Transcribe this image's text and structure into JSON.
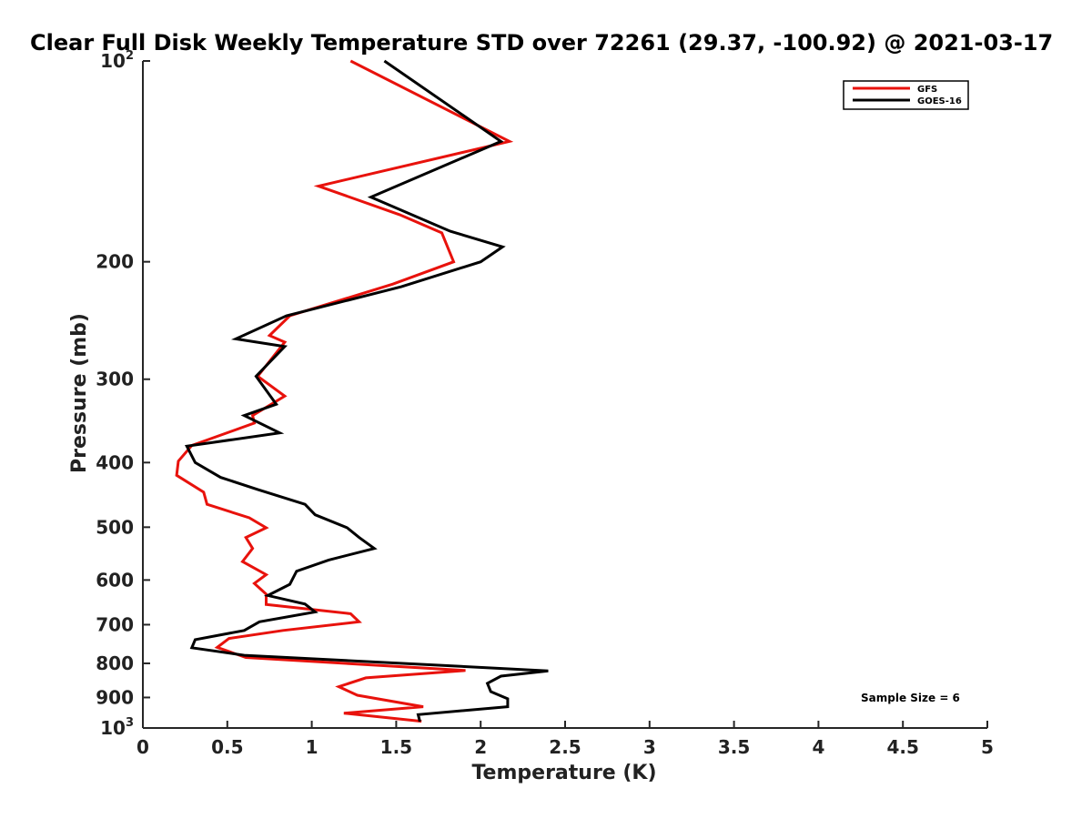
{
  "chart_data": {
    "type": "line",
    "title": "Clear Full Disk Weekly Temperature STD over 72261 (29.37, -100.92) @ 2021-03-17",
    "xlabel": "Temperature (K)",
    "ylabel": "Pressure (mb)",
    "xlim": [
      0,
      5
    ],
    "ylim": [
      1000,
      100
    ],
    "y_scale": "log",
    "x_ticks": [
      "0",
      "0.5",
      "1",
      "1.5",
      "2",
      "2.5",
      "3",
      "3.5",
      "4",
      "4.5",
      "5"
    ],
    "y_ticks": [
      {
        "value": 100,
        "base": "10",
        "exp": "2"
      },
      {
        "value": 200,
        "label": "200"
      },
      {
        "value": 300,
        "label": "300"
      },
      {
        "value": 400,
        "label": "400"
      },
      {
        "value": 500,
        "label": "500"
      },
      {
        "value": 600,
        "label": "600"
      },
      {
        "value": 700,
        "label": "700"
      },
      {
        "value": 800,
        "label": "800"
      },
      {
        "value": 900,
        "label": "900"
      },
      {
        "value": 1000,
        "base": "10",
        "exp": "3"
      }
    ],
    "grid": false,
    "legend_position": "top-right",
    "annotation": "Sample Size = 6",
    "series": [
      {
        "name": "GFS",
        "color": "#e8120c",
        "temps": [
          1.23,
          2.17,
          1.04,
          1.52,
          1.77,
          1.84,
          1.48,
          0.87,
          0.75,
          0.84,
          0.68,
          0.84,
          0.65,
          0.66,
          0.29,
          0.21,
          0.2,
          0.36,
          0.38,
          0.63,
          0.73,
          0.61,
          0.65,
          0.59,
          0.73,
          0.66,
          0.73,
          0.73,
          1.23,
          1.28,
          0.83,
          0.51,
          0.44,
          0.61,
          1.91,
          1.32,
          1.16,
          1.27,
          1.66,
          1.19,
          1.65
        ],
        "pressures": [
          100,
          132,
          154,
          170,
          181,
          200,
          216,
          241,
          258,
          264,
          297,
          318,
          340,
          349,
          377,
          398,
          418,
          443,
          462,
          484,
          501,
          518,
          538,
          563,
          589,
          607,
          630,
          653,
          674,
          693,
          714,
          734,
          757,
          784,
          820,
          841,
          867,
          893,
          929,
          950,
          977
        ]
      },
      {
        "name": "GOES-16",
        "color": "#000000",
        "temps": [
          1.43,
          2.12,
          1.35,
          1.82,
          2.13,
          2.0,
          1.53,
          0.85,
          0.55,
          0.84,
          0.67,
          0.79,
          0.6,
          0.81,
          0.26,
          0.31,
          0.46,
          0.68,
          0.96,
          1.02,
          1.21,
          1.28,
          1.37,
          1.1,
          0.91,
          0.87,
          0.74,
          0.96,
          1.02,
          0.69,
          0.6,
          0.31,
          0.29,
          0.6,
          2.4,
          2.12,
          2.04,
          2.06,
          2.16,
          2.16,
          1.63,
          1.64
        ],
        "pressures": [
          100,
          132,
          160,
          180,
          190,
          200,
          218,
          241,
          261,
          268,
          297,
          327,
          340,
          361,
          378,
          400,
          421,
          439,
          462,
          479,
          501,
          518,
          538,
          560,
          582,
          609,
          633,
          652,
          670,
          693,
          714,
          737,
          758,
          778,
          821,
          836,
          857,
          882,
          904,
          929,
          955,
          978
        ]
      }
    ]
  }
}
